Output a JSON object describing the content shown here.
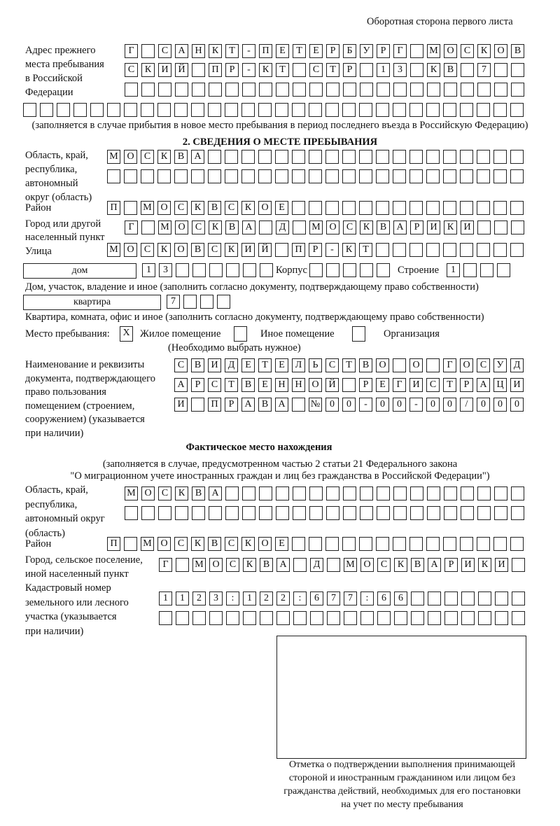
{
  "header": {
    "sheet_label": "Оборотная сторона первого листа"
  },
  "previous_address": {
    "label_lines": [
      "Адрес прежнего",
      "места пребывания",
      "в Российской",
      "Федерации"
    ],
    "rows": [
      [
        "Г",
        "",
        "С",
        "А",
        "Н",
        "К",
        "Т",
        "-",
        "П",
        "Е",
        "Т",
        "Е",
        "Р",
        "Б",
        "У",
        "Р",
        "Г",
        "",
        "М",
        "О",
        "С",
        "К",
        "О",
        "В"
      ],
      [
        "С",
        "К",
        "И",
        "Й",
        "",
        "П",
        "Р",
        "-",
        "К",
        "Т",
        "",
        "С",
        "Т",
        "Р",
        "",
        "1",
        "3",
        "",
        "К",
        "В",
        "",
        "7",
        "",
        ""
      ],
      [],
      []
    ],
    "note": "(заполняется в случае прибытия в новое место пребывания в период последнего въезда в Российскую Федерацию)"
  },
  "section2": {
    "title": "2. СВЕДЕНИЯ О МЕСТЕ ПРЕБЫВАНИЯ",
    "region_label_lines": [
      "Область, край,",
      "республика,",
      "автономный",
      "округ (область)"
    ],
    "region_rows": [
      [
        "М",
        "О",
        "С",
        "К",
        "В",
        "А"
      ],
      []
    ],
    "district_label": "Район",
    "district": [
      "П",
      "",
      "М",
      "О",
      "С",
      "К",
      "В",
      "С",
      "К",
      "О",
      "Е"
    ],
    "city_label_lines": [
      "Город или другой",
      "населенный пункт"
    ],
    "city": [
      "Г",
      "",
      "М",
      "О",
      "С",
      "К",
      "В",
      "А",
      "",
      "Д",
      "",
      "М",
      "О",
      "С",
      "К",
      "В",
      "А",
      "Р",
      "И",
      "К",
      "И"
    ],
    "street_label": "Улица",
    "street": [
      "М",
      "О",
      "С",
      "К",
      "О",
      "В",
      "С",
      "К",
      "И",
      "Й",
      "",
      "П",
      "Р",
      "-",
      "К",
      "Т"
    ],
    "house_type": "дом",
    "house": [
      "1",
      "3"
    ],
    "building_label": "Корпус",
    "building": [],
    "structure_label": "Строение",
    "structure": [
      "1"
    ],
    "house_note": "Дом, участок, владение и иное (заполнить согласно документу, подтверждающему право собственности)",
    "apartment_type": "квартира",
    "apartment": [
      "7"
    ],
    "apartment_note": "Квартира, комната, офис и иное (заполнить согласно документу, подтверждающему право собственности)",
    "stay_place_label": "Место пребывания:",
    "stay_options": [
      {
        "label": "Жилое помещение",
        "mark": "X"
      },
      {
        "label": "Иное помещение",
        "mark": ""
      },
      {
        "label": "Организация",
        "mark": ""
      }
    ],
    "stay_note": "(Необходимо выбрать нужное)",
    "doc_label_lines": [
      "Наименование и реквизиты",
      "документа, подтверждающего",
      "право пользования",
      "помещением (строением,",
      "сооружением) (указывается",
      "при наличии)"
    ],
    "doc_rows": [
      [
        "С",
        "В",
        "И",
        "Д",
        "Е",
        "Т",
        "Е",
        "Л",
        "Ь",
        "С",
        "Т",
        "В",
        "О",
        "",
        "О",
        "",
        "Г",
        "О",
        "С",
        "У",
        "Д"
      ],
      [
        "А",
        "Р",
        "С",
        "Т",
        "В",
        "Е",
        "Н",
        "Н",
        "О",
        "Й",
        "",
        "Р",
        "Е",
        "Г",
        "И",
        "С",
        "Т",
        "Р",
        "А",
        "Ц",
        "И"
      ],
      [
        "И",
        "",
        "П",
        "Р",
        "А",
        "В",
        "А",
        "",
        "№",
        "0",
        "0",
        "-",
        "0",
        "0",
        "-",
        "0",
        "0",
        "/",
        "0",
        "0",
        "0"
      ]
    ]
  },
  "actual_location": {
    "title": "Фактическое место нахождения",
    "note_lines": [
      "(заполняется в случае, предусмотренном частью 2 статьи 21 Федерального закона",
      "\"О миграционном учете иностранных граждан и лиц без гражданства в Российской Федерации\")"
    ],
    "region_label_lines": [
      "Область, край,",
      "республика,",
      "автономный округ",
      "(область)"
    ],
    "region_rows": [
      [
        "М",
        "О",
        "С",
        "К",
        "В",
        "А"
      ],
      []
    ],
    "district_label": "Район",
    "district": [
      "П",
      "",
      "М",
      "О",
      "С",
      "К",
      "В",
      "С",
      "К",
      "О",
      "Е"
    ],
    "city_label_lines": [
      "Город, сельское поселение,",
      "иной населенный пункт"
    ],
    "city": [
      "Г",
      "",
      "М",
      "О",
      "С",
      "К",
      "В",
      "А",
      "",
      "Д",
      "",
      "М",
      "О",
      "С",
      "К",
      "В",
      "А",
      "Р",
      "И",
      "К",
      "И"
    ],
    "cadastral_label_lines": [
      "Кадастровый номер",
      "земельного или лесного",
      "участка (указывается",
      "при наличии)"
    ],
    "cadastral_rows": [
      [
        "1",
        "1",
        "2",
        "3",
        ":",
        "1",
        "2",
        "2",
        ":",
        "6",
        "7",
        "7",
        ":",
        "6",
        "6"
      ],
      []
    ]
  },
  "confirmation": {
    "caption_lines": [
      "Отметка о подтверждении выполнения принимающей",
      "стороной и иностранным гражданином или лицом без",
      "гражданства действий, необходимых для его постановки",
      "на учет по месту пребывания"
    ]
  }
}
